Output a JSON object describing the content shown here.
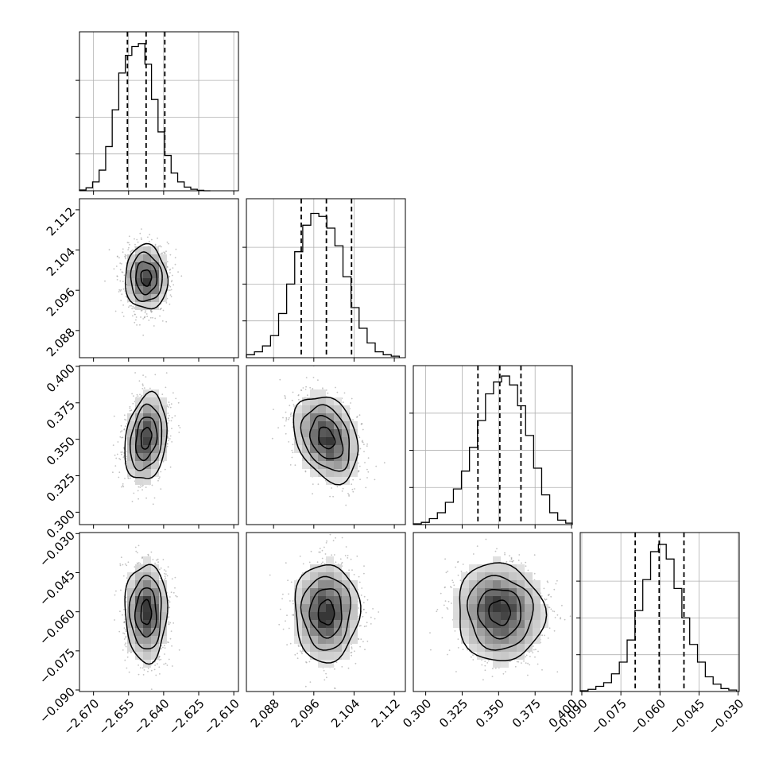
{
  "chart_data": {
    "type": "corner",
    "title": "",
    "grid": true,
    "quantile_lines": "dashed",
    "parameters": [
      {
        "index": 0,
        "range": [
          -2.676,
          -2.608
        ],
        "ticks": [
          "−2.670",
          "−2.655",
          "−2.640",
          "−2.625",
          "−2.610"
        ],
        "tick_values": [
          -2.67,
          -2.655,
          -2.64,
          -2.625,
          -2.61
        ],
        "quantiles": [
          -2.6555,
          -2.6475,
          -2.6395
        ]
      },
      {
        "index": 1,
        "range": [
          2.0826,
          2.1142
        ],
        "ticks": [
          "2.088",
          "2.096",
          "2.104",
          "2.112"
        ],
        "tick_values": [
          2.088,
          2.096,
          2.104,
          2.112
        ],
        "quantiles": [
          2.0935,
          2.0985,
          2.1035
        ]
      },
      {
        "index": 2,
        "range": [
          0.2915,
          0.4005
        ],
        "ticks": [
          "0.300",
          "0.325",
          "0.350",
          "0.375",
          "0.400"
        ],
        "tick_values": [
          0.3,
          0.325,
          0.35,
          0.375,
          0.4
        ],
        "quantiles": [
          0.3358,
          0.3508,
          0.3653
        ]
      },
      {
        "index": 3,
        "range": [
          -0.0906,
          -0.0296
        ],
        "ticks": [
          "−0.090",
          "−0.075",
          "−0.060",
          "−0.045",
          "−0.030"
        ],
        "tick_values": [
          -0.09,
          -0.075,
          -0.06,
          -0.045,
          -0.03
        ],
        "quantiles": [
          -0.0695,
          -0.0603,
          -0.0508
        ]
      }
    ],
    "histograms": [
      {
        "param": 0,
        "bins": [
          -2.676,
          -2.6732,
          -2.6704,
          -2.6676,
          -2.6648,
          -2.662,
          -2.6592,
          -2.6564,
          -2.6536,
          -2.6508,
          -2.648,
          -2.6452,
          -2.6424,
          -2.6396,
          -2.6368,
          -2.634,
          -2.6312,
          -2.6284,
          -2.6256,
          -2.6228,
          -2.62
        ],
        "counts": [
          0.5,
          2,
          6,
          14,
          30,
          55,
          80,
          92,
          98,
          100,
          86,
          62,
          40,
          24,
          12,
          6,
          2.5,
          1,
          0.3,
          0
        ],
        "ylim": [
          0,
          108
        ]
      },
      {
        "param": 1,
        "bins": [
          2.0826,
          2.0842,
          2.0858,
          2.0874,
          2.089,
          2.0906,
          2.0922,
          2.0938,
          2.0954,
          2.097,
          2.0986,
          2.1002,
          2.1018,
          2.1034,
          2.105,
          2.1066,
          2.1082,
          2.1098,
          2.1114,
          2.113
        ],
        "counts": [
          2,
          4,
          8,
          15,
          30,
          50,
          72,
          90,
          98,
          96,
          88,
          76,
          55,
          34,
          20,
          10,
          4,
          2,
          1
        ],
        "ylim": [
          0,
          108
        ]
      },
      {
        "param": 2,
        "bins": [
          0.2915,
          0.297,
          0.3025,
          0.308,
          0.3135,
          0.319,
          0.3245,
          0.33,
          0.3355,
          0.341,
          0.3465,
          0.352,
          0.3575,
          0.363,
          0.3685,
          0.374,
          0.3795,
          0.385,
          0.3905,
          0.396,
          0.4005
        ],
        "counts": [
          0.5,
          1.5,
          4,
          8,
          15,
          24,
          36,
          52,
          70,
          88,
          96,
          100,
          94,
          80,
          60,
          38,
          20,
          8,
          3,
          1
        ],
        "ylim": [
          0,
          107
        ]
      },
      {
        "param": 3,
        "bins": [
          -0.0906,
          -0.0876,
          -0.0846,
          -0.0816,
          -0.0786,
          -0.0756,
          -0.0726,
          -0.0696,
          -0.0666,
          -0.0636,
          -0.0606,
          -0.0576,
          -0.0546,
          -0.0516,
          -0.0486,
          -0.0456,
          -0.0426,
          -0.0396,
          -0.0366,
          -0.0336,
          -0.0306
        ],
        "counts": [
          0.5,
          1.5,
          3.5,
          6,
          12,
          20,
          35,
          55,
          76,
          95,
          100,
          90,
          70,
          50,
          32,
          20,
          10,
          5,
          2,
          1
        ],
        "ylim": [
          0,
          108
        ]
      }
    ],
    "scatter_panels": [
      {
        "x": 0,
        "y": 1,
        "center": [
          -2.6475,
          2.0985
        ],
        "sd": [
          0.0045,
          0.0032
        ],
        "corr": -0.05
      },
      {
        "x": 0,
        "y": 2,
        "center": [
          -2.6475,
          0.3508
        ],
        "sd": [
          0.0045,
          0.0148
        ],
        "corr": 0.22
      },
      {
        "x": 1,
        "y": 2,
        "center": [
          2.0985,
          0.3508
        ],
        "sd": [
          0.0032,
          0.0148
        ],
        "corr": -0.3
      },
      {
        "x": 0,
        "y": 3,
        "center": [
          -2.6475,
          -0.0603
        ],
        "sd": [
          0.0045,
          0.0094
        ],
        "corr": 0.0
      },
      {
        "x": 1,
        "y": 3,
        "center": [
          2.0985,
          -0.0603
        ],
        "sd": [
          0.0032,
          0.0094
        ],
        "corr": 0.0
      },
      {
        "x": 2,
        "y": 3,
        "center": [
          0.3508,
          -0.0603
        ],
        "sd": [
          0.0148,
          0.0094
        ],
        "corr": -0.05
      }
    ],
    "contour_levels_sigma": [
      0.5,
      1.0,
      1.5,
      2.0
    ],
    "colors": {
      "line": "#000000",
      "points": "#9a9a9a",
      "density": "#000000",
      "grid": "#b0b0b0"
    }
  }
}
